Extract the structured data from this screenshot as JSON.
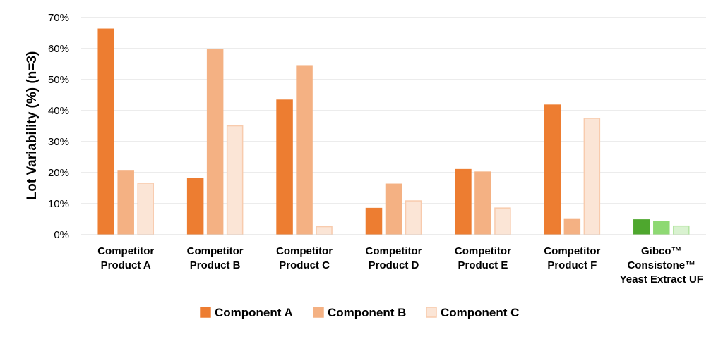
{
  "chart_data": {
    "type": "bar",
    "title": "",
    "xlabel": "",
    "ylabel": "Lot Variability (%) (n=3)",
    "ylim": [
      0,
      70
    ],
    "yticks": [
      "0%",
      "10%",
      "20%",
      "30%",
      "40%",
      "50%",
      "60%",
      "70%"
    ],
    "grid": true,
    "legend_position": "bottom",
    "categories": [
      [
        "Competitor",
        "Product A"
      ],
      [
        "Competitor",
        "Product B"
      ],
      [
        "Competitor",
        "Product C"
      ],
      [
        "Competitor",
        "Product D"
      ],
      [
        "Competitor",
        "Product E"
      ],
      [
        "Competitor",
        "Product F"
      ],
      [
        "Gibco™",
        "Consistone™",
        "Yeast Extract UF"
      ]
    ],
    "series": [
      {
        "name": "Component A",
        "values": [
          66.3,
          18.2,
          43.4,
          8.5,
          21.0,
          41.8,
          4.8
        ]
      },
      {
        "name": "Component B",
        "values": [
          20.7,
          59.6,
          54.5,
          16.3,
          20.2,
          4.9,
          4.3
        ]
      },
      {
        "name": "Component C",
        "values": [
          16.6,
          35.1,
          2.6,
          10.9,
          8.6,
          37.5,
          2.8
        ]
      }
    ],
    "colors": {
      "series_fill": [
        "#ED7D31",
        "#F4B183",
        "#FBE5D6"
      ],
      "series_stroke": [
        "#ED7D31",
        "#F4B183",
        "#F8CBAD"
      ],
      "highlight_fill": [
        "#4EA72E",
        "#8ED973",
        "#D9F2D0"
      ],
      "highlight_stroke": [
        "#4EA72E",
        "#8ED973",
        "#B4E5A2"
      ],
      "grid": "#D9D9D9"
    }
  }
}
